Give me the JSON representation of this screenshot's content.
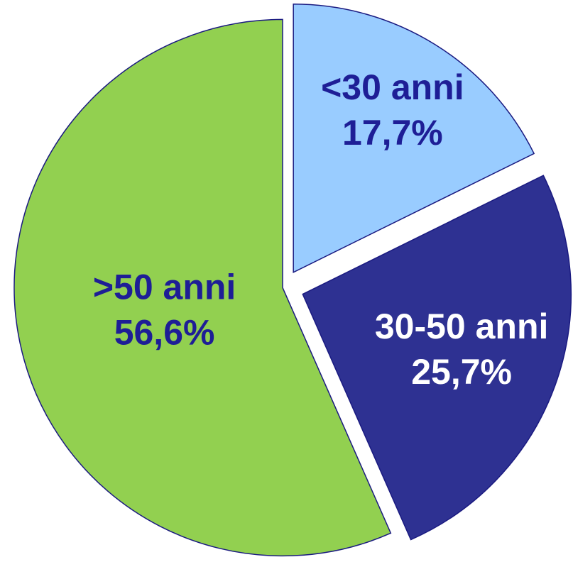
{
  "chart_data": {
    "type": "pie",
    "categories": [
      "<30 anni",
      "30-50 anni",
      ">50 anni"
    ],
    "values": [
      17.7,
      25.7,
      56.6
    ],
    "value_labels": [
      "17,7%",
      "25,7%",
      "56,6%"
    ],
    "colors": [
      "#99ccff",
      "#2e3192",
      "#92d050"
    ],
    "label_colors": [
      "#1e1e96",
      "#ffffff",
      "#1e1e96"
    ]
  }
}
